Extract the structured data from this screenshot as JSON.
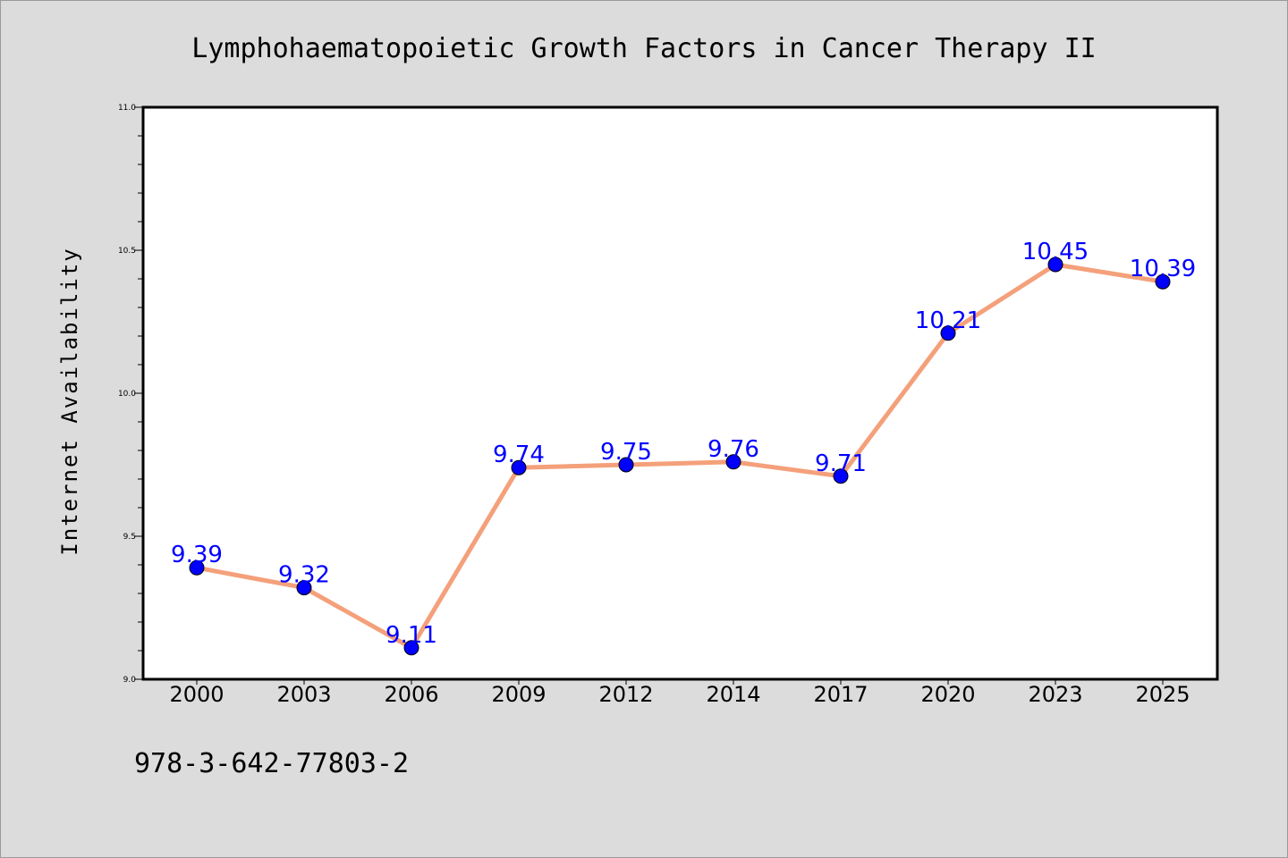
{
  "chart_data": {
    "type": "line",
    "title": "Lymphohaematopoietic Growth Factors in Cancer Therapy II",
    "xlabel": "",
    "ylabel": "Internet Availability",
    "categories": [
      "2000",
      "2003",
      "2006",
      "2009",
      "2012",
      "2014",
      "2017",
      "2020",
      "2023",
      "2025"
    ],
    "series": [
      {
        "values": [
          9.39,
          9.32,
          9.11,
          9.74,
          9.75,
          9.76,
          9.71,
          10.21,
          10.45,
          10.39
        ]
      }
    ],
    "data_labels": [
      "9.39",
      "9.32",
      "9.11",
      "9.74",
      "9.75",
      "9.76",
      "9.71",
      "10.21",
      "10.45",
      "10.39"
    ],
    "ylim": [
      9.0,
      11.0
    ],
    "yticks": [
      "9.0",
      "9.5",
      "10.0",
      "10.5",
      "11.0"
    ],
    "grid": false,
    "legend": "none",
    "colors": {
      "line": "#f4a07a",
      "marker": "#0000ff",
      "label": "#0000ff",
      "background": "#dcdcdc",
      "plot_area": "#ffffff"
    }
  },
  "footer": {
    "isbn": "978-3-642-77803-2"
  }
}
